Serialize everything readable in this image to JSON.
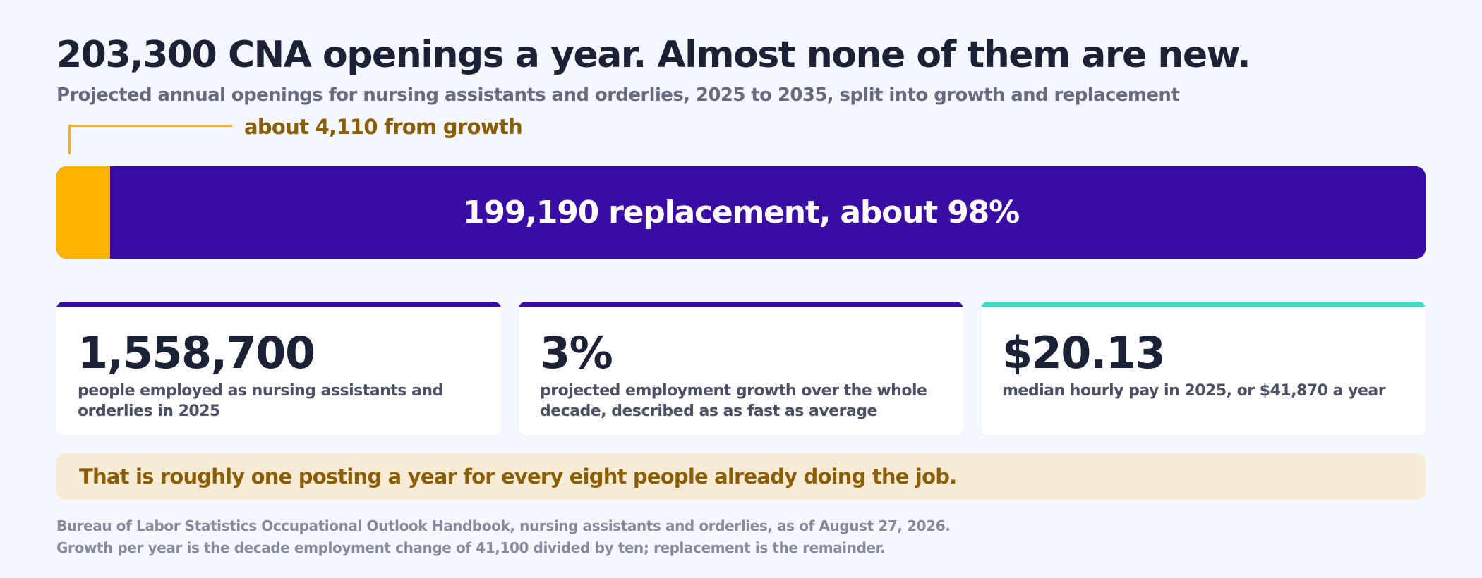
{
  "title": "203,300 CNA openings a year. Almost none of them are new.",
  "subtitle": "Projected annual openings for nursing assistants and orderlies, 2025 to 2035, split into growth and replacement",
  "chart_data": {
    "type": "bar",
    "orientation": "horizontal-stacked",
    "total": 203300,
    "series": [
      {
        "name": "growth",
        "value": 4110,
        "label": "about 4,110 from growth",
        "color": "#ffb300"
      },
      {
        "name": "replacement",
        "value": 199190,
        "label": "199,190 replacement, about 98%",
        "color": "#390ca4"
      }
    ]
  },
  "stats": [
    {
      "value": "1,558,700",
      "description": "people employed as nursing assistants and orderlies in 2025",
      "accent": "#390ca4"
    },
    {
      "value": "3%",
      "description": "projected employment growth over the whole decade, described as as fast as average",
      "accent": "#390ca4"
    },
    {
      "value": "$20.13",
      "description": "median hourly pay in 2025, or $41,870 a year",
      "accent": "#36e0c2"
    }
  ],
  "note": "That is roughly one posting a year for every eight people already doing the job.",
  "source": {
    "line1": "Bureau of Labor Statistics Occupational Outlook Handbook, nursing assistants and orderlies, as of August 27, 2026.",
    "line2": "Growth per year is the decade employment change of 41,100 divided by ten; replacement is the remainder."
  }
}
